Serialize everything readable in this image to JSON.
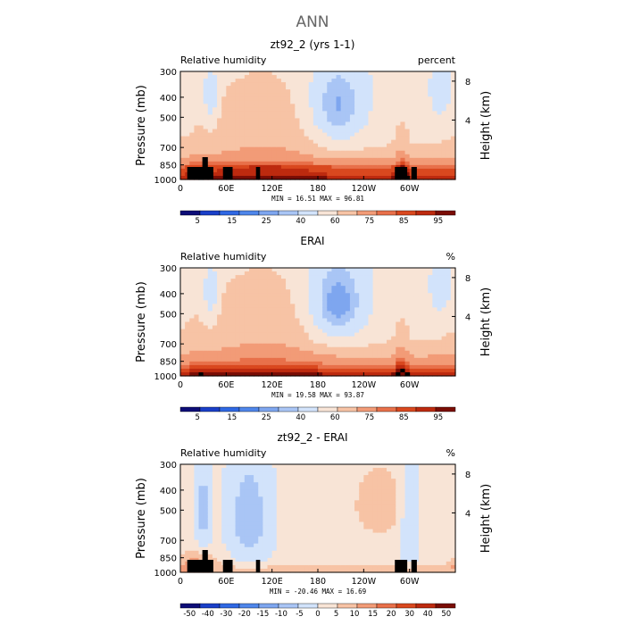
{
  "figure_title": "ANN",
  "colors": {
    "rh_levels": [
      "#0d0d77",
      "#1a3fc8",
      "#2f68e3",
      "#4f86ea",
      "#7ea6ef",
      "#a9c5f5",
      "#d2e3fb",
      "#f8e4d6",
      "#f7c3a5",
      "#f29b77",
      "#e8704a",
      "#d9481f",
      "#bd2a0f",
      "#7a0d05"
    ],
    "diff_levels": [
      "#0d0d77",
      "#1a3fc8",
      "#2f68e3",
      "#4f86ea",
      "#7ea6ef",
      "#a9c5f5",
      "#d2e3fb",
      "#f8e4d6",
      "#f7c3a5",
      "#f29b77",
      "#e8704a",
      "#d9481f",
      "#bd2a0f",
      "#7a0d05"
    ]
  },
  "chart_data": [
    {
      "type": "heatmap",
      "title": "zt92_2 (yrs 1-1)",
      "left_label": "Relative humidity",
      "right_label": "percent",
      "ylabel": "Pressure (mb)",
      "y2label": "Height (km)",
      "xticks": [
        "0",
        "60E",
        "120E",
        "180",
        "120W",
        "60W"
      ],
      "yticks": [
        "300",
        "400",
        "500",
        "700",
        "850",
        "1000"
      ],
      "y2ticks": [
        "8",
        "4"
      ],
      "stats": "MIN =   16.51   MAX =   96.81",
      "min": 16.51,
      "max": 96.81,
      "colorbar_labels": [
        "5",
        "15",
        "25",
        "40",
        "60",
        "75",
        "85",
        "95"
      ],
      "colorbar_levels": [
        5,
        10,
        15,
        20,
        25,
        30,
        40,
        50,
        60,
        70,
        75,
        80,
        85,
        90,
        95
      ]
    },
    {
      "type": "heatmap",
      "title": "ERAI",
      "left_label": "Relative humidity",
      "right_label": "%",
      "ylabel": "Pressure (mb)",
      "y2label": "Height (km)",
      "xticks": [
        "0",
        "60E",
        "120E",
        "180",
        "120W",
        "60W"
      ],
      "yticks": [
        "300",
        "400",
        "500",
        "700",
        "850",
        "1000"
      ],
      "y2ticks": [
        "8",
        "4"
      ],
      "stats": "MIN =   19.58   MAX =   93.87",
      "min": 19.58,
      "max": 93.87,
      "colorbar_labels": [
        "5",
        "15",
        "25",
        "40",
        "60",
        "75",
        "85",
        "95"
      ],
      "colorbar_levels": [
        5,
        10,
        15,
        20,
        25,
        30,
        40,
        50,
        60,
        70,
        75,
        80,
        85,
        90,
        95
      ]
    },
    {
      "type": "heatmap",
      "title": "zt92_2 - ERAI",
      "left_label": "Relative humidity",
      "right_label": "%",
      "ylabel": "Pressure (mb)",
      "y2label": "Height (km)",
      "xticks": [
        "0",
        "60E",
        "120E",
        "180",
        "120W",
        "60W"
      ],
      "yticks": [
        "300",
        "400",
        "500",
        "700",
        "850",
        "1000"
      ],
      "y2ticks": [
        "8",
        "4"
      ],
      "stats": "MIN =  -20.46   MAX =   16.69",
      "min": -20.46,
      "max": 16.69,
      "colorbar_labels": [
        "-50",
        "-40",
        "-30",
        "-20",
        "-15",
        "-10",
        "-5",
        "0",
        "5",
        "10",
        "15",
        "20",
        "30",
        "40",
        "50"
      ],
      "colorbar_levels": [
        -50,
        -40,
        -30,
        -20,
        -15,
        -10,
        -5,
        0,
        5,
        10,
        15,
        20,
        30,
        40,
        50
      ]
    }
  ]
}
